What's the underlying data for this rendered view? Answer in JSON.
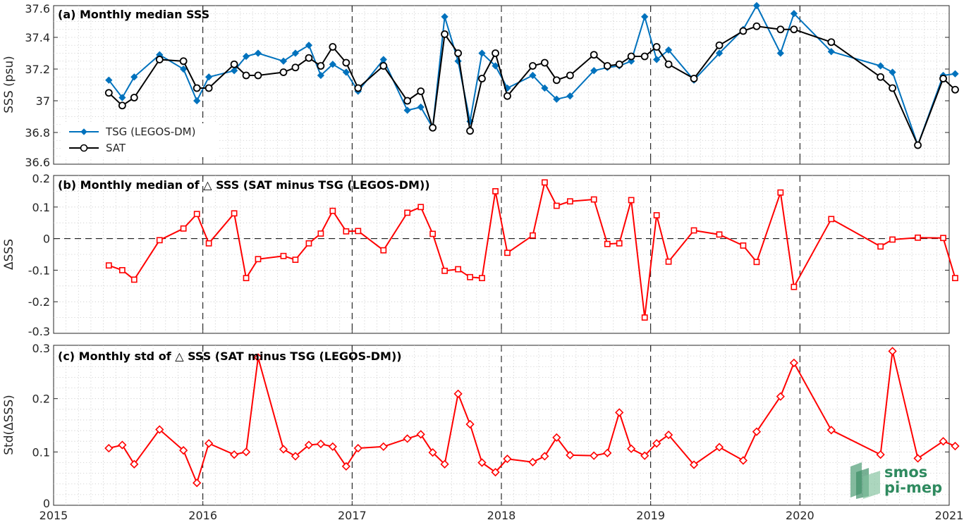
{
  "chart_data": [
    {
      "id": "a",
      "type": "line",
      "title": "(a) Monthly median SSS",
      "ylabel": "SSS (psu)",
      "xlim": [
        2015,
        2021
      ],
      "ylim": [
        36.6,
        37.6
      ],
      "xticks": [
        2015,
        2016,
        2017,
        2018,
        2019,
        2020,
        2021
      ],
      "yticks": [
        36.6,
        36.8,
        37,
        37.2,
        37.4,
        37.6
      ],
      "year_lines": [
        2016,
        2017,
        2018,
        2019,
        2020
      ],
      "grid": true,
      "legend_position": "left",
      "series": [
        {
          "name": "TSG (LEGOS-DM)",
          "color": "#0072BD",
          "marker": "diamond",
          "x": [
            2015.37,
            2015.46,
            2015.54,
            2015.71,
            2015.87,
            2015.96,
            2016.04,
            2016.21,
            2016.29,
            2016.37,
            2016.54,
            2016.62,
            2016.71,
            2016.79,
            2016.87,
            2016.96,
            2017.04,
            2017.21,
            2017.37,
            2017.46,
            2017.54,
            2017.62,
            2017.71,
            2017.79,
            2017.87,
            2017.96,
            2018.04,
            2018.21,
            2018.29,
            2018.37,
            2018.46,
            2018.62,
            2018.71,
            2018.79,
            2018.87,
            2018.96,
            2019.04,
            2019.12,
            2019.29,
            2019.46,
            2019.62,
            2019.71,
            2019.87,
            2019.96,
            2020.21,
            2020.54,
            2020.62,
            2020.79,
            2020.96,
            2021.04
          ],
          "y": [
            37.13,
            37.02,
            37.15,
            37.29,
            37.2,
            37.0,
            37.15,
            37.19,
            37.28,
            37.3,
            37.25,
            37.3,
            37.35,
            37.16,
            37.23,
            37.18,
            37.06,
            37.26,
            36.94,
            36.96,
            36.83,
            37.53,
            37.25,
            36.87,
            37.3,
            37.22,
            37.08,
            37.16,
            37.08,
            37.01,
            37.03,
            37.19,
            37.21,
            37.22,
            37.25,
            37.53,
            37.26,
            37.32,
            37.13,
            37.3,
            37.45,
            37.6,
            37.3,
            37.55,
            37.31,
            37.22,
            37.18,
            36.72,
            37.16,
            37.17
          ]
        },
        {
          "name": "SAT",
          "color": "#000000",
          "marker": "circle",
          "x": [
            2015.37,
            2015.46,
            2015.54,
            2015.71,
            2015.87,
            2015.96,
            2016.04,
            2016.21,
            2016.29,
            2016.37,
            2016.54,
            2016.62,
            2016.71,
            2016.79,
            2016.87,
            2016.96,
            2017.04,
            2017.21,
            2017.37,
            2017.46,
            2017.54,
            2017.62,
            2017.71,
            2017.79,
            2017.87,
            2017.96,
            2018.04,
            2018.21,
            2018.29,
            2018.37,
            2018.46,
            2018.62,
            2018.71,
            2018.79,
            2018.87,
            2018.96,
            2019.04,
            2019.12,
            2019.29,
            2019.46,
            2019.62,
            2019.71,
            2019.87,
            2019.96,
            2020.21,
            2020.54,
            2020.62,
            2020.79,
            2020.96,
            2021.04
          ],
          "y": [
            37.05,
            36.97,
            37.02,
            37.26,
            37.25,
            37.08,
            37.08,
            37.23,
            37.16,
            37.16,
            37.18,
            37.21,
            37.27,
            37.22,
            37.34,
            37.24,
            37.08,
            37.22,
            37.0,
            37.06,
            36.83,
            37.42,
            37.3,
            36.81,
            37.14,
            37.3,
            37.03,
            37.22,
            37.24,
            37.13,
            37.16,
            37.29,
            37.22,
            37.23,
            37.28,
            37.28,
            37.34,
            37.23,
            37.14,
            37.35,
            37.44,
            37.47,
            37.45,
            37.45,
            37.37,
            37.15,
            37.08,
            36.72,
            37.14,
            37.07
          ]
        }
      ]
    },
    {
      "id": "b",
      "type": "line",
      "title": "(b) Monthly median of △ SSS (SAT minus TSG (LEGOS-DM))",
      "ylabel": "ΔSSS",
      "xlim": [
        2015,
        2021
      ],
      "ylim": [
        -0.3,
        0.2
      ],
      "xticks": [
        2015,
        2016,
        2017,
        2018,
        2019,
        2020,
        2021
      ],
      "yticks": [
        -0.3,
        -0.2,
        -0.1,
        0,
        0.1,
        0.2
      ],
      "zero_line": true,
      "year_lines": [
        2016,
        2017,
        2018,
        2019,
        2020
      ],
      "grid": true,
      "series": [
        {
          "color": "#FF0000",
          "marker": "square",
          "x": [
            2015.37,
            2015.46,
            2015.54,
            2015.71,
            2015.87,
            2015.96,
            2016.04,
            2016.21,
            2016.29,
            2016.37,
            2016.54,
            2016.62,
            2016.71,
            2016.79,
            2016.87,
            2016.96,
            2017.04,
            2017.21,
            2017.37,
            2017.46,
            2017.54,
            2017.62,
            2017.71,
            2017.79,
            2017.87,
            2017.96,
            2018.04,
            2018.21,
            2018.29,
            2018.37,
            2018.46,
            2018.62,
            2018.71,
            2018.79,
            2018.87,
            2018.96,
            2019.04,
            2019.12,
            2019.29,
            2019.46,
            2019.62,
            2019.71,
            2019.87,
            2019.96,
            2020.21,
            2020.54,
            2020.62,
            2020.79,
            2020.96,
            2021.04
          ],
          "y": [
            -0.085,
            -0.1,
            -0.13,
            -0.005,
            0.032,
            0.078,
            -0.015,
            0.08,
            -0.125,
            -0.065,
            -0.055,
            -0.067,
            -0.015,
            0.016,
            0.088,
            0.023,
            0.024,
            -0.037,
            0.082,
            0.1,
            0.015,
            -0.102,
            -0.097,
            -0.122,
            -0.125,
            0.15,
            -0.045,
            0.01,
            0.178,
            0.104,
            0.118,
            0.124,
            -0.017,
            -0.015,
            0.122,
            -0.25,
            0.074,
            -0.073,
            0.026,
            0.013,
            -0.022,
            -0.074,
            0.146,
            -0.153,
            0.062,
            -0.025,
            -0.003,
            0.003,
            0.002,
            -0.125
          ]
        }
      ]
    },
    {
      "id": "c",
      "type": "line",
      "title": "(c) Monthly std of △ SSS (SAT minus TSG (LEGOS-DM))",
      "ylabel": "Std(ΔSSS)",
      "xlim": [
        2015,
        2021
      ],
      "ylim": [
        0,
        0.3
      ],
      "xticks": [
        2015,
        2016,
        2017,
        2018,
        2019,
        2020,
        2021
      ],
      "yticks": [
        0,
        0.1,
        0.2,
        0.3
      ],
      "year_lines": [
        2016,
        2017,
        2018,
        2019,
        2020
      ],
      "grid": true,
      "series": [
        {
          "color": "#FF0000",
          "marker": "diamond",
          "x": [
            2015.37,
            2015.46,
            2015.54,
            2015.71,
            2015.87,
            2015.96,
            2016.04,
            2016.21,
            2016.29,
            2016.37,
            2016.54,
            2016.62,
            2016.71,
            2016.79,
            2016.87,
            2016.96,
            2017.04,
            2017.21,
            2017.37,
            2017.46,
            2017.54,
            2017.62,
            2017.71,
            2017.79,
            2017.87,
            2017.96,
            2018.04,
            2018.21,
            2018.29,
            2018.37,
            2018.46,
            2018.62,
            2018.71,
            2018.79,
            2018.87,
            2018.96,
            2019.04,
            2019.12,
            2019.29,
            2019.46,
            2019.62,
            2019.71,
            2019.87,
            2019.96,
            2020.21,
            2020.54,
            2020.62,
            2020.79,
            2020.96,
            2021.04
          ],
          "y": [
            0.107,
            0.113,
            0.077,
            0.142,
            0.103,
            0.042,
            0.116,
            0.095,
            0.1,
            0.277,
            0.105,
            0.092,
            0.113,
            0.115,
            0.11,
            0.073,
            0.107,
            0.11,
            0.125,
            0.133,
            0.099,
            0.077,
            0.209,
            0.152,
            0.08,
            0.062,
            0.087,
            0.081,
            0.092,
            0.127,
            0.094,
            0.093,
            0.098,
            0.174,
            0.106,
            0.093,
            0.116,
            0.132,
            0.076,
            0.109,
            0.084,
            0.138,
            0.204,
            0.267,
            0.141,
            0.095,
            0.289,
            0.088,
            0.12,
            0.111
          ]
        }
      ]
    }
  ],
  "logo": {
    "line1": "smos",
    "line2": "pi-mep"
  }
}
